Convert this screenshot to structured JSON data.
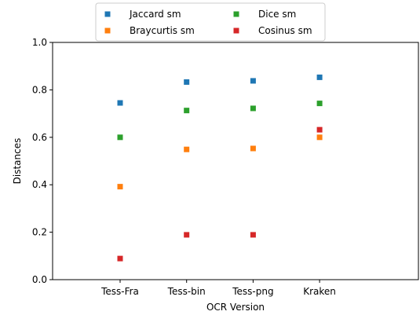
{
  "chart_data": {
    "type": "scatter",
    "title": "",
    "xlabel": "OCR Version",
    "ylabel": "Distances",
    "categories": [
      "Tess-Fra",
      "Tess-bin",
      "Tess-png",
      "Kraken"
    ],
    "ylim": [
      0.0,
      1.0
    ],
    "yticks": [
      "0.0",
      "0.2",
      "0.4",
      "0.6",
      "0.8",
      "1.0"
    ],
    "grid": false,
    "legend_position": "top-center, above plot, 2 columns",
    "series": [
      {
        "name": "Jaccard sm",
        "color": "#1f77b4",
        "values": [
          0.745,
          0.833,
          0.838,
          0.853
        ]
      },
      {
        "name": "Braycurtis sm",
        "color": "#ff7f0e",
        "values": [
          0.392,
          0.549,
          0.553,
          0.6
        ]
      },
      {
        "name": "Dice sm",
        "color": "#2ca02c",
        "values": [
          0.6,
          0.713,
          0.722,
          0.743
        ]
      },
      {
        "name": "Cosinus sm",
        "color": "#d62728",
        "values": [
          0.089,
          0.189,
          0.189,
          0.632
        ]
      }
    ]
  }
}
